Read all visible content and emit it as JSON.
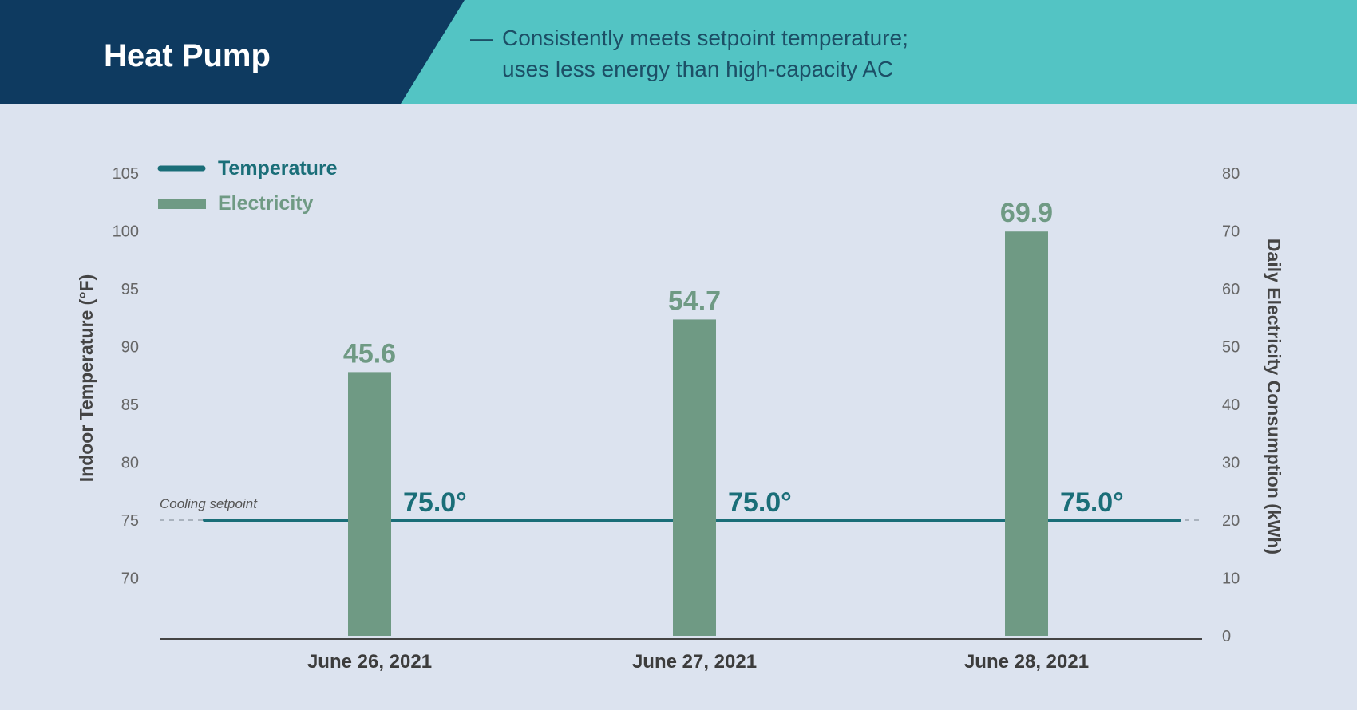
{
  "header": {
    "title": "Heat Pump",
    "subtitle_dash": "—",
    "subtitle_line1": "Consistently meets setpoint temperature;",
    "subtitle_line2": "uses less energy than high-capacity AC",
    "colors": {
      "title_bg": "#0e3a60",
      "subtitle_bg": "#53c4c4"
    }
  },
  "chart_data": {
    "type": "bar+line",
    "categories": [
      "June 26, 2021",
      "June 27, 2021",
      "June 28, 2021"
    ],
    "series": [
      {
        "name": "Temperature",
        "type": "line",
        "axis": "left",
        "values": [
          75.0,
          75.0,
          75.0
        ],
        "labels": [
          "75.0°",
          "75.0°",
          "75.0°"
        ],
        "color": "#1a6e78"
      },
      {
        "name": "Electricity",
        "type": "bar",
        "axis": "right",
        "values": [
          45.6,
          54.7,
          69.9
        ],
        "labels": [
          "45.6",
          "54.7",
          "69.9"
        ],
        "color": "#6f9a84"
      }
    ],
    "ylabel_left": "Indoor Temperature (°F)",
    "ylabel_right": "Daily Electricity Consumption (kWh)",
    "yticks_left": [
      "105",
      "100",
      "95",
      "90",
      "85",
      "80",
      "75",
      "70"
    ],
    "yticks_right": [
      "80",
      "70",
      "60",
      "50",
      "40",
      "30",
      "20",
      "10",
      "0"
    ],
    "ylim_left": [
      65,
      105
    ],
    "ylim_right": [
      0,
      80
    ],
    "annotation": "Cooling setpoint",
    "setpoint": 75,
    "legend": "top-left",
    "grid": false
  }
}
